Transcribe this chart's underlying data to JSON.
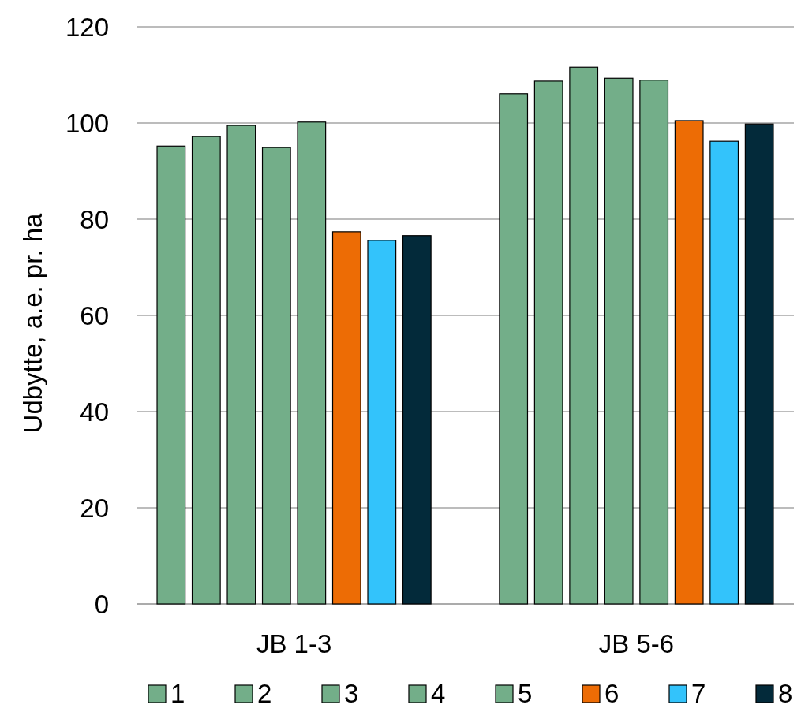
{
  "chart_data": {
    "type": "bar",
    "ylabel": "Udbytte, a.e. pr. ha",
    "categories": [
      "JB 1-3",
      "JB 5-6"
    ],
    "series": [
      {
        "name": "1",
        "color": "#73ae89",
        "values": [
          95.2,
          106.1
        ]
      },
      {
        "name": "2",
        "color": "#73ae89",
        "values": [
          97.2,
          108.7
        ]
      },
      {
        "name": "3",
        "color": "#73ae89",
        "values": [
          99.5,
          111.6
        ]
      },
      {
        "name": "4",
        "color": "#73ae89",
        "values": [
          94.9,
          109.3
        ]
      },
      {
        "name": "5",
        "color": "#73ae89",
        "values": [
          100.2,
          108.9
        ]
      },
      {
        "name": "6",
        "color": "#ed6c05",
        "values": [
          77.4,
          100.5
        ]
      },
      {
        "name": "7",
        "color": "#33c3fb",
        "values": [
          75.6,
          96.2
        ]
      },
      {
        "name": "8",
        "color": "#032a3a",
        "values": [
          76.6,
          99.8
        ]
      }
    ],
    "ylim": [
      0,
      120
    ],
    "yticks": [
      0,
      20,
      40,
      60,
      80,
      100,
      120
    ],
    "grid": "y",
    "legend": "bottom"
  }
}
